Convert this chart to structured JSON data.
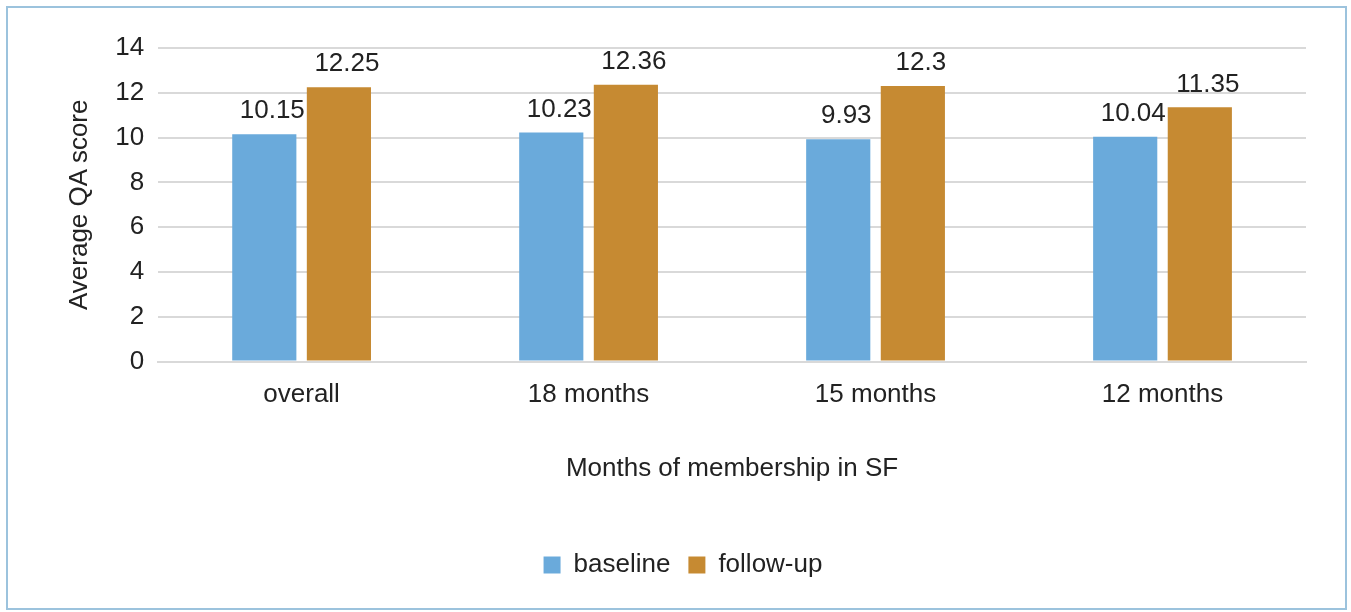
{
  "chart_data": {
    "type": "bar",
    "xlabel": "Months of membership in SF",
    "ylabel": "Average QA score",
    "categories": [
      "overall",
      "18 months",
      "15 months",
      "12 months"
    ],
    "series": [
      {
        "name": "baseline",
        "color": "#6aaadb",
        "values": [
          10.15,
          10.23,
          9.93,
          10.04
        ]
      },
      {
        "name": "follow-up",
        "color": "#c68a32",
        "values": [
          12.25,
          12.36,
          12.3,
          11.35
        ]
      }
    ],
    "ylim": [
      0,
      14
    ],
    "yticks": [
      0,
      2,
      4,
      6,
      8,
      10,
      12,
      14
    ],
    "grid": "y",
    "legend": "bottom",
    "data_labels": true
  }
}
